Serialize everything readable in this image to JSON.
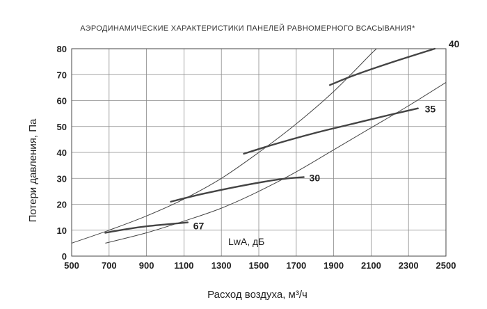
{
  "chart_data": {
    "type": "line",
    "title": "АЭРОДИНАМИЧЕСКИЕ ХАРАКТЕРИСТИКИ ПАНЕЛЕЙ РАВНОМЕРНОГО ВСАСЫВАНИЯ*",
    "xlabel": "Расход воздуха, м³/ч",
    "ylabel": "Потери давления, Па",
    "xlim": [
      500,
      2500
    ],
    "ylim": [
      0,
      80
    ],
    "x_ticks": [
      500,
      700,
      900,
      1100,
      1300,
      1500,
      1700,
      1900,
      2100,
      2300,
      2500
    ],
    "y_ticks": [
      0,
      10,
      20,
      30,
      40,
      50,
      60,
      70,
      80
    ],
    "grid": true,
    "annotation": "LwA, дБ",
    "series": [
      {
        "kind": "curve",
        "points": [
          [
            500,
            5
          ],
          [
            700,
            10
          ],
          [
            900,
            15.5
          ],
          [
            1100,
            22
          ],
          [
            1300,
            30
          ],
          [
            1500,
            40
          ],
          [
            1700,
            51
          ],
          [
            1900,
            63.5
          ],
          [
            2100,
            78
          ],
          [
            2130,
            80
          ]
        ]
      },
      {
        "kind": "curve",
        "points": [
          [
            680,
            5
          ],
          [
            900,
            9
          ],
          [
            1100,
            13.5
          ],
          [
            1300,
            18.5
          ],
          [
            1500,
            25
          ],
          [
            1700,
            32.5
          ],
          [
            1900,
            41
          ],
          [
            2100,
            49.5
          ],
          [
            2300,
            58
          ],
          [
            2500,
            67
          ]
        ]
      },
      {
        "kind": "noise",
        "name": "67",
        "points": [
          [
            680,
            9
          ],
          [
            800,
            10.5
          ],
          [
            900,
            11.5
          ],
          [
            1000,
            12.2
          ],
          [
            1120,
            13
          ]
        ]
      },
      {
        "kind": "noise",
        "name": "30",
        "points": [
          [
            1030,
            21
          ],
          [
            1200,
            24
          ],
          [
            1400,
            27
          ],
          [
            1600,
            29.5
          ],
          [
            1740,
            30.5
          ]
        ]
      },
      {
        "kind": "noise",
        "name": "35",
        "points": [
          [
            1420,
            39.5
          ],
          [
            1600,
            43.5
          ],
          [
            1800,
            47.5
          ],
          [
            2000,
            51
          ],
          [
            2200,
            54.5
          ],
          [
            2350,
            57
          ]
        ]
      },
      {
        "kind": "noise",
        "name": "40",
        "points": [
          [
            1880,
            66
          ],
          [
            2000,
            69.5
          ],
          [
            2200,
            74.5
          ],
          [
            2440,
            80
          ]
        ]
      }
    ]
  }
}
